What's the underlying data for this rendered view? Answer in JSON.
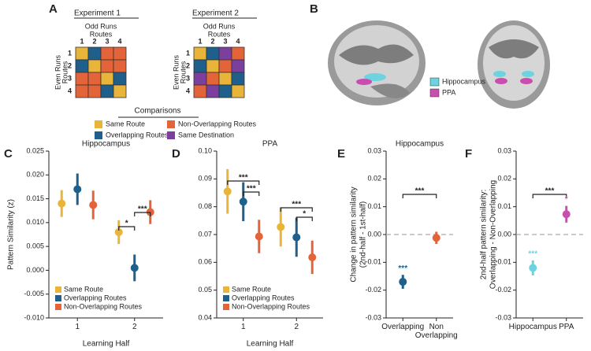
{
  "panel_a": {
    "label": "A",
    "experiments": [
      {
        "title": "Experiment 1",
        "col_header": "Odd Runs",
        "col_sub": "Routes",
        "row_header": "Even Runs",
        "row_sub": "Routes",
        "labels": [
          "1",
          "2",
          "3",
          "4"
        ],
        "matrix": [
          [
            0,
            2,
            1,
            1
          ],
          [
            2,
            0,
            1,
            1
          ],
          [
            1,
            1,
            0,
            2
          ],
          [
            1,
            1,
            2,
            0
          ]
        ]
      },
      {
        "title": "Experiment 2",
        "col_header": "Odd Runs",
        "col_sub": "Routes",
        "row_header": "Even Runs",
        "row_sub": "Routes",
        "labels": [
          "1",
          "2",
          "3",
          "4"
        ],
        "matrix": [
          [
            0,
            2,
            3,
            1
          ],
          [
            2,
            0,
            1,
            3
          ],
          [
            3,
            1,
            0,
            2
          ],
          [
            1,
            3,
            2,
            0
          ]
        ]
      }
    ],
    "legend_title": "Comparisons",
    "comparisons": [
      {
        "name": "Same Route",
        "color": "#e8b53a"
      },
      {
        "name": "Non-Overlapping Routes",
        "color": "#e4643a"
      },
      {
        "name": "Overlapping Routes",
        "color": "#1f5f8b"
      },
      {
        "name": "Same Destination",
        "color": "#7b3f9e"
      }
    ]
  },
  "panel_b": {
    "label": "B",
    "regions": [
      {
        "name": "Hippocampus",
        "color": "#6dd3e0"
      },
      {
        "name": "PPA",
        "color": "#c84fb0"
      }
    ]
  },
  "chart_data": [
    {
      "type": "grouped_pointrange",
      "panel": "C",
      "title": "Hippocampus",
      "xlabel": "Learning Half",
      "ylabel": [
        "Pattern Similarity (z)"
      ],
      "categories": [
        "1",
        "2"
      ],
      "series": [
        {
          "name": "Same Route",
          "color": "#e8b53a",
          "values": [
            0.014,
            0.008
          ],
          "errors": [
            0.0028,
            0.0025
          ]
        },
        {
          "name": "Overlapping Routes",
          "color": "#1f5f8b",
          "values": [
            0.017,
            0.0005
          ],
          "errors": [
            0.0033,
            0.0028
          ]
        },
        {
          "name": "Non-Overlapping Routes",
          "color": "#e4643a",
          "values": [
            0.0137,
            0.0122
          ],
          "errors": [
            0.003,
            0.0025
          ]
        }
      ],
      "ylim": [
        -0.01,
        0.025
      ],
      "yticks": [
        {
          "value": -0.01,
          "label": "-0.010"
        },
        {
          "value": -0.005,
          "label": "-0.005"
        },
        {
          "value": 0,
          "label": "0.000"
        },
        {
          "value": 0.005,
          "label": "0.005"
        },
        {
          "value": 0.01,
          "label": "0.010"
        },
        {
          "value": 0.015,
          "label": "0.015"
        },
        {
          "value": 0.02,
          "label": "0.020"
        },
        {
          "value": 0.025,
          "label": "0.025"
        }
      ],
      "legend": "lower left",
      "annotations": [
        "*",
        "***"
      ]
    },
    {
      "type": "grouped_pointrange",
      "panel": "D",
      "title": "PPA",
      "xlabel": "Learning Half",
      "categories": [
        "1",
        "2"
      ],
      "series": [
        {
          "name": "Same Route",
          "color": "#e8b53a",
          "values": [
            0.0855,
            0.0727
          ],
          "errors": [
            0.008,
            0.007
          ]
        },
        {
          "name": "Overlapping Routes",
          "color": "#1f5f8b",
          "values": [
            0.0818,
            0.069
          ],
          "errors": [
            0.007,
            0.007
          ]
        },
        {
          "name": "Non-Overlapping Routes",
          "color": "#e4643a",
          "values": [
            0.0693,
            0.0618
          ],
          "errors": [
            0.006,
            0.006
          ]
        }
      ],
      "ylim": [
        0.04,
        0.1
      ],
      "yticks": [
        0.04,
        0.05,
        0.06,
        0.07,
        0.08,
        0.09,
        {
          "value": 0.1,
          "label": "0.10"
        }
      ],
      "legend": "lower left",
      "annotations": [
        "***",
        "***",
        "***",
        "*"
      ]
    },
    {
      "type": "pointrange",
      "panel": "E",
      "title": "Hippocampus",
      "ylabel": [
        "Change in pattern similarity",
        "(2nd-half - 1st-half)"
      ],
      "categories": [
        "Overlapping",
        "Non Overlapping"
      ],
      "values": [
        -0.017,
        -0.0012
      ],
      "errors": [
        0.0025,
        0.0022
      ],
      "colors": [
        "#1f5f8b",
        "#e4643a"
      ],
      "ylim": [
        -0.03,
        0.03
      ],
      "yticks": [
        -0.03,
        -0.02,
        -0.01,
        {
          "value": 0,
          "label": "0.00"
        },
        0.01,
        0.02,
        0.03
      ],
      "zero_line": true,
      "annotations": [
        "***",
        "***"
      ]
    },
    {
      "type": "pointrange",
      "panel": "F",
      "ylabel": [
        "2nd-half pattern similarity:",
        "Overlapping - Non-Overlapping"
      ],
      "categories": [
        "Hippocampus",
        "PPA"
      ],
      "values": [
        -0.012,
        0.0073
      ],
      "errors": [
        0.0027,
        0.003
      ],
      "colors": [
        "#6dd3e0",
        "#c84fb0"
      ],
      "ylim": [
        -0.03,
        0.03
      ],
      "yticks": [
        -0.03,
        -0.02,
        -0.01,
        {
          "value": 0,
          "label": "0.00"
        },
        0.01,
        0.02,
        0.03
      ],
      "zero_line": true,
      "annotations": [
        "***",
        "***",
        "*"
      ]
    }
  ]
}
